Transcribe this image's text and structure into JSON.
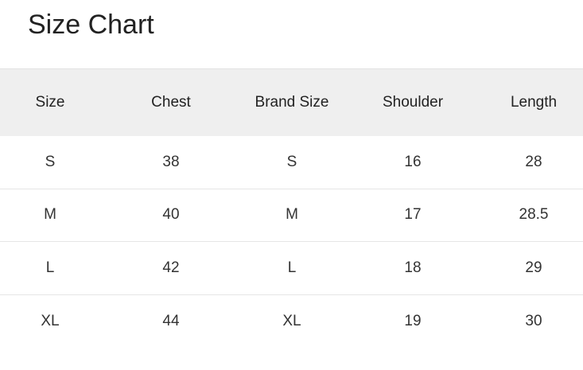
{
  "title": "Size Chart",
  "table": {
    "headers": [
      "Size",
      "Chest",
      "Brand Size",
      "Shoulder",
      "Length"
    ],
    "rows": [
      [
        "S",
        "38",
        "S",
        "16",
        "28"
      ],
      [
        "M",
        "40",
        "M",
        "17",
        "28.5"
      ],
      [
        "L",
        "42",
        "L",
        "18",
        "29"
      ],
      [
        "XL",
        "44",
        "XL",
        "19",
        "30"
      ]
    ]
  }
}
